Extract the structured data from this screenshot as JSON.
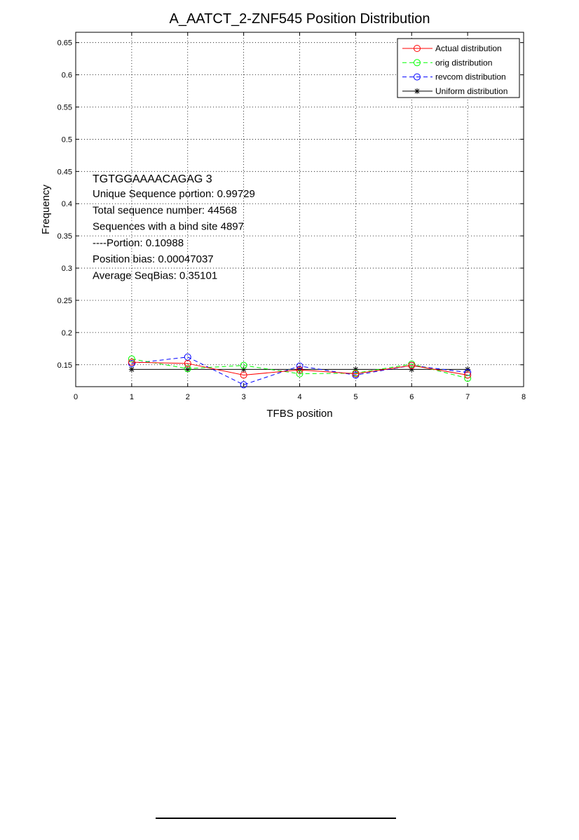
{
  "chart_data": {
    "type": "line",
    "title": "A_AATCT_2-ZNF545 Position Distribution",
    "xlabel": "TFBS position",
    "ylabel": "Frequency",
    "xlim": [
      0,
      8
    ],
    "ylim": [
      0.116,
      0.666
    ],
    "xticks": [
      0,
      1,
      2,
      3,
      4,
      5,
      6,
      7,
      8
    ],
    "yticks": [
      0.15,
      0.2,
      0.25,
      0.3,
      0.35,
      0.4,
      0.45,
      0.5,
      0.55,
      0.6,
      0.65
    ],
    "grid": true,
    "legend_position": "top-right",
    "x": [
      1,
      2,
      3,
      4,
      5,
      6,
      7
    ],
    "series": [
      {
        "name": "Actual distribution",
        "color": "#ff0000",
        "dash": "solid",
        "marker": "circle",
        "values": [
          0.154,
          0.152,
          0.134,
          0.142,
          0.136,
          0.149,
          0.134
        ]
      },
      {
        "name": "orig distribution",
        "color": "#00ff00",
        "dash": "dashed",
        "marker": "circle",
        "values": [
          0.159,
          0.144,
          0.149,
          0.136,
          0.137,
          0.151,
          0.129
        ]
      },
      {
        "name": "revcom distribution",
        "color": "#0000ff",
        "dash": "dashed",
        "marker": "circle",
        "values": [
          0.152,
          0.162,
          0.119,
          0.148,
          0.134,
          0.149,
          0.138
        ]
      },
      {
        "name": "Uniform distribution",
        "color": "#000000",
        "dash": "solid",
        "marker": "star",
        "values": [
          0.142857,
          0.142857,
          0.142857,
          0.142857,
          0.142857,
          0.142857,
          0.142857
        ]
      }
    ],
    "annotations": [
      "TGTGGAAAACAGAG 3",
      "Unique Sequence portion:  0.99729",
      "Total sequence number: 44568",
      "Sequences with a bind site 4897",
      "----Portion: 0.10988",
      "Position bias: 0.00047037",
      "Average SeqBias: 0.35101"
    ]
  }
}
